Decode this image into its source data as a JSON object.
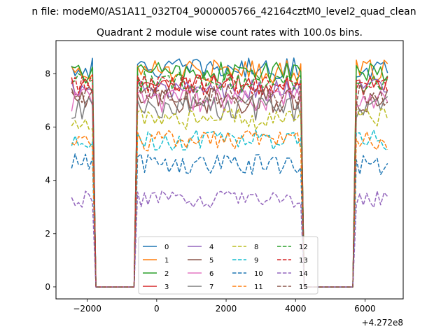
{
  "header": {
    "suptitle": "n file: modeM0/AS1A11_032T04_9000005766_42164cztM0_level2_quad_clean",
    "title": "Quadrant 2 module wise count rates with 100.0s bins."
  },
  "chart_data": {
    "type": "line",
    "title": "Quadrant 2 module wise count rates with 100.0s bins.",
    "xlabel": "",
    "ylabel": "",
    "x_offset_label": "+4.272e8",
    "xlim": [
      -2900,
      7100
    ],
    "ylim": [
      -0.45,
      9.25
    ],
    "xticks": [
      -2000,
      0,
      2000,
      4000,
      6000
    ],
    "xtick_labels": [
      "−2000",
      "0",
      "2000",
      "4000",
      "6000"
    ],
    "yticks": [
      0,
      2,
      4,
      6,
      8
    ],
    "ytick_labels": [
      "0",
      "2",
      "4",
      "6",
      "8"
    ],
    "grid": false,
    "legend_location": "lower center, 4 columns",
    "x_start": -2450,
    "x_step": 100,
    "segments": [
      {
        "start": -2450,
        "end": -1850,
        "state": "on"
      },
      {
        "start": -1750,
        "end": -650,
        "state": "off"
      },
      {
        "start": -550,
        "end": 4150,
        "state": "on"
      },
      {
        "start": 4250,
        "end": 5650,
        "state": "off"
      },
      {
        "start": 5750,
        "end": 6650,
        "state": "on"
      }
    ],
    "series": [
      {
        "name": "0",
        "level": 8.2,
        "noise": 0.25,
        "color": "#1f77b4",
        "dash": "solid"
      },
      {
        "name": "1",
        "level": 8.1,
        "noise": 0.28,
        "color": "#ff7f0e",
        "dash": "solid"
      },
      {
        "name": "2",
        "level": 8.05,
        "noise": 0.25,
        "color": "#2ca02c",
        "dash": "solid"
      },
      {
        "name": "3",
        "level": 7.6,
        "noise": 0.25,
        "color": "#d62728",
        "dash": "solid"
      },
      {
        "name": "4",
        "level": 7.4,
        "noise": 0.25,
        "color": "#9467bd",
        "dash": "solid"
      },
      {
        "name": "5",
        "level": 7.0,
        "noise": 0.3,
        "color": "#8c564b",
        "dash": "solid"
      },
      {
        "name": "6",
        "level": 7.0,
        "noise": 0.28,
        "color": "#e377c2",
        "dash": "solid"
      },
      {
        "name": "7",
        "level": 6.7,
        "noise": 0.3,
        "color": "#7f7f7f",
        "dash": "solid"
      },
      {
        "name": "8",
        "level": 6.3,
        "noise": 0.25,
        "color": "#bcbd22",
        "dash": "dashed"
      },
      {
        "name": "9",
        "level": 5.5,
        "noise": 0.25,
        "color": "#17becf",
        "dash": "dashed"
      },
      {
        "name": "10",
        "level": 4.6,
        "noise": 0.25,
        "color": "#1f77b4",
        "dash": "dashed"
      },
      {
        "name": "11",
        "level": 5.5,
        "noise": 0.25,
        "color": "#ff7f0e",
        "dash": "dashed"
      },
      {
        "name": "12",
        "level": 7.7,
        "noise": 0.25,
        "color": "#2ca02c",
        "dash": "dashed"
      },
      {
        "name": "13",
        "level": 7.6,
        "noise": 0.25,
        "color": "#d62728",
        "dash": "dashed"
      },
      {
        "name": "14",
        "level": 3.3,
        "noise": 0.2,
        "color": "#9467bd",
        "dash": "dashed"
      },
      {
        "name": "15",
        "level": 7.2,
        "noise": 0.25,
        "color": "#8c564b",
        "dash": "dashed"
      }
    ]
  }
}
